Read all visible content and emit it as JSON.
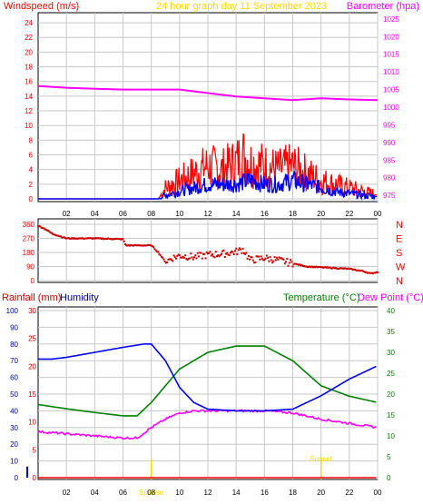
{
  "colors": {
    "red": "#ff0000",
    "darkred": "#cc0000",
    "blue": "#0000ff",
    "navy": "#00008b",
    "magenta": "#ff00ff",
    "green": "#008000",
    "gold": "#ffd700",
    "grid": "#c8c8c8",
    "axis": "#000000"
  },
  "chart_data": [
    {
      "type": "line",
      "title": "24 hour graph day 11 September 2023",
      "left_axis_label": "Windspeed (m/s)",
      "right_axis_label": "Barometer (hpa)",
      "x_ticks": [
        "02",
        "04",
        "06",
        "08",
        "10",
        "12",
        "14",
        "16",
        "18",
        "20",
        "22",
        "00"
      ],
      "y_ticks": [
        "0",
        "2",
        "4",
        "6",
        "8",
        "10",
        "12",
        "14",
        "16",
        "18",
        "20",
        "22",
        "24"
      ],
      "y2_ticks": [
        "975",
        "980",
        "985",
        "990",
        "995",
        "1000",
        "1005",
        "1010",
        "1015",
        "1020",
        "1025"
      ],
      "ylim": [
        0,
        25
      ],
      "y2lim": [
        974,
        1026
      ],
      "series": [
        {
          "role": "barometer",
          "axis": "right",
          "x": [
            0,
            2,
            4,
            6,
            8,
            10,
            12,
            14,
            16,
            18,
            20,
            22,
            24
          ],
          "y": [
            1006,
            1005.5,
            1005.2,
            1005,
            1005,
            1005,
            1004,
            1003,
            1002.5,
            1002,
            1002.5,
            1002.2,
            1002
          ]
        },
        {
          "role": "wind_gust",
          "axis": "left",
          "x": [
            0,
            2,
            4,
            6,
            8,
            8.5,
            9,
            10,
            11,
            12,
            13,
            14,
            14.5,
            15,
            16,
            17,
            18,
            19,
            20,
            21,
            22,
            23,
            24
          ],
          "y": [
            0,
            0,
            0,
            0,
            0,
            0,
            1.5,
            2.5,
            3.5,
            4.5,
            4,
            5,
            6,
            5,
            4.5,
            4,
            4.5,
            3.5,
            2.5,
            2,
            1.5,
            1,
            0.5
          ]
        },
        {
          "role": "wind_avg",
          "axis": "left",
          "x": [
            0,
            2,
            4,
            6,
            8,
            8.5,
            9,
            10,
            11,
            12,
            13,
            14,
            15,
            16,
            17,
            18,
            19,
            20,
            21,
            22,
            23,
            24
          ],
          "y": [
            0,
            0,
            0,
            0,
            0,
            0,
            0.5,
            1,
            1.5,
            2,
            2,
            2,
            2.5,
            2,
            2,
            2.5,
            2,
            1.5,
            1,
            0.7,
            0.5,
            0.3
          ]
        }
      ]
    },
    {
      "type": "scatter",
      "left_ticks": [
        "0",
        "90",
        "180",
        "270",
        "360"
      ],
      "right_ticks": [
        "N",
        "W",
        "S",
        "E",
        "N"
      ],
      "ylim": [
        0,
        360
      ],
      "x": [
        0,
        0.5,
        1,
        2,
        4,
        6,
        6.2,
        8,
        8.5,
        9,
        9.5,
        10,
        11,
        12,
        13,
        14,
        14.5,
        15,
        16,
        17,
        18,
        19,
        20,
        21,
        22,
        23,
        23.5,
        24
      ],
      "y": [
        350,
        330,
        300,
        270,
        270,
        265,
        225,
        225,
        180,
        120,
        145,
        160,
        150,
        165,
        170,
        185,
        200,
        130,
        145,
        130,
        110,
        90,
        85,
        80,
        75,
        60,
        45,
        55
      ]
    },
    {
      "type": "line",
      "left_axis_label_1": "Rainfall (mm)",
      "left_axis_label_2": "Humidity",
      "right_axis_label_1": "Temperature (°C)",
      "right_axis_label_2": "Dew Point (°C)",
      "humidity_ticks": [
        "0",
        "10",
        "20",
        "30",
        "40",
        "50",
        "60",
        "70",
        "80",
        "90",
        "100"
      ],
      "rain_ticks": [
        "0",
        "5",
        "10",
        "15",
        "20",
        "25",
        "30"
      ],
      "temp_ticks": [
        "0",
        "5",
        "10",
        "15",
        "20",
        "25",
        "30",
        "35",
        "40"
      ],
      "x_ticks": [
        "02",
        "04",
        "06",
        "08",
        "10",
        "12",
        "14",
        "16",
        "18",
        "20",
        "22",
        "00"
      ],
      "events": [
        {
          "label": "Sunrise",
          "x": 8
        },
        {
          "label": "Sunset",
          "x": 20
        }
      ],
      "series": [
        {
          "role": "humidity",
          "axis": "humidity",
          "x": [
            0,
            1,
            2,
            4,
            6,
            7.5,
            8,
            9,
            10,
            11,
            12,
            14,
            16,
            18,
            20,
            22,
            24
          ],
          "y": [
            71,
            71,
            72,
            75,
            78,
            80,
            80,
            70,
            54,
            45,
            41,
            40,
            40,
            41,
            49,
            59,
            67
          ]
        },
        {
          "role": "temperature",
          "axis": "temp",
          "x": [
            0,
            2,
            4,
            6,
            7,
            8,
            9,
            10,
            11,
            12,
            14,
            15,
            16,
            18,
            20,
            22,
            24
          ],
          "y": [
            17.5,
            16.5,
            15.6,
            14.8,
            14.8,
            18,
            22,
            26,
            28,
            30,
            31.5,
            31.5,
            31.5,
            28,
            22,
            19.5,
            18
          ]
        },
        {
          "role": "dew_point",
          "axis": "temp",
          "x": [
            0,
            2,
            4,
            6,
            7,
            8,
            9,
            10,
            11,
            12,
            14,
            16,
            18,
            20,
            22,
            24
          ],
          "y": [
            11,
            10.5,
            10,
            9.5,
            9.5,
            12,
            14,
            15.5,
            16,
            16,
            16,
            16,
            15.5,
            14,
            13,
            12
          ]
        },
        {
          "role": "rainfall",
          "axis": "rain",
          "x": [
            0,
            24
          ],
          "y": [
            0,
            0
          ]
        }
      ]
    }
  ]
}
